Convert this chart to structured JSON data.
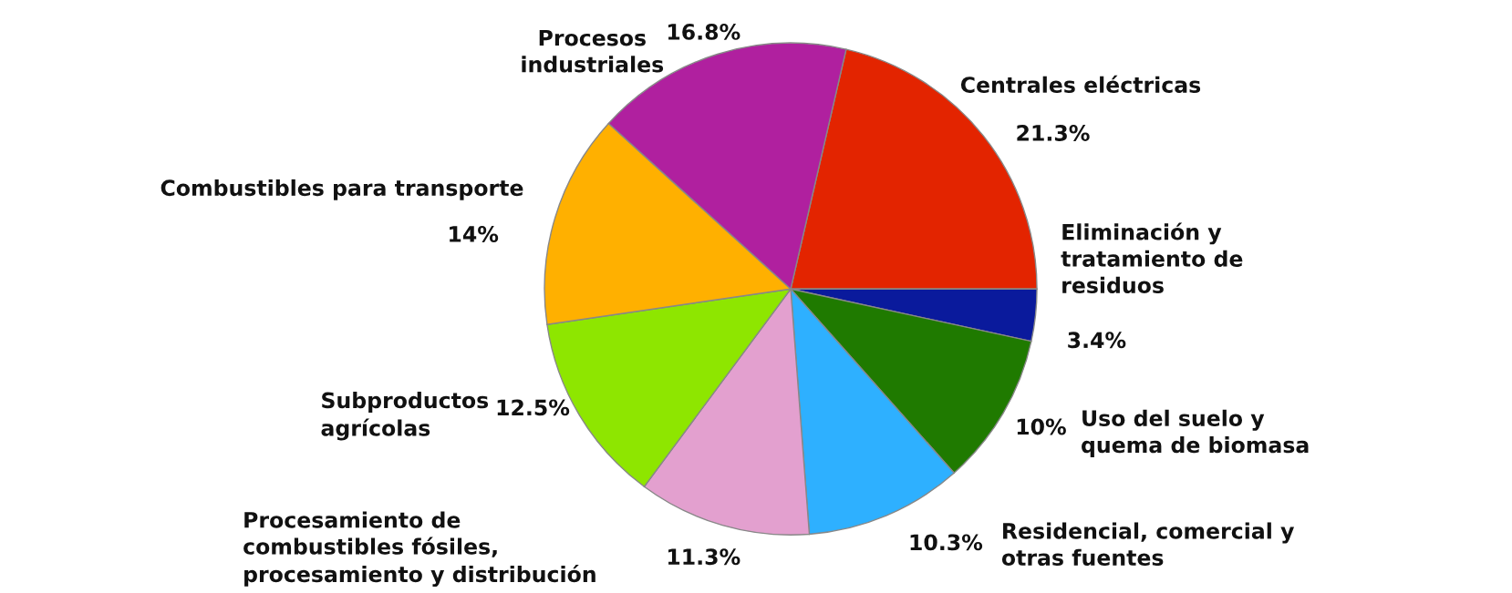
{
  "chart_data": {
    "type": "pie",
    "categories": [
      "Centrales eléctricas",
      "Eliminación y\ntratamiento de\nresiduos",
      "Uso del suelo y\nquema de biomasa",
      "Residencial, comercial y\notras fuentes",
      "Procesamiento de\ncombustibles fósiles,\nprocesamiento y distribución",
      "Subproductos\nagrícolas",
      "Combustibles para transporte",
      "Procesos\nindustriales"
    ],
    "values": [
      21.3,
      3.4,
      10,
      10.3,
      11.3,
      12.5,
      14,
      16.8
    ],
    "value_labels": [
      "21.3%",
      "3.4%",
      "10%",
      "10.3%",
      "11.3%",
      "12.5%",
      "14%",
      "16.8%"
    ],
    "colors": [
      "#e32400",
      "#0a1a9c",
      "#1f7a00",
      "#2eb0ff",
      "#e3a0cf",
      "#8ee600",
      "#ffb000",
      "#b0209f"
    ]
  }
}
